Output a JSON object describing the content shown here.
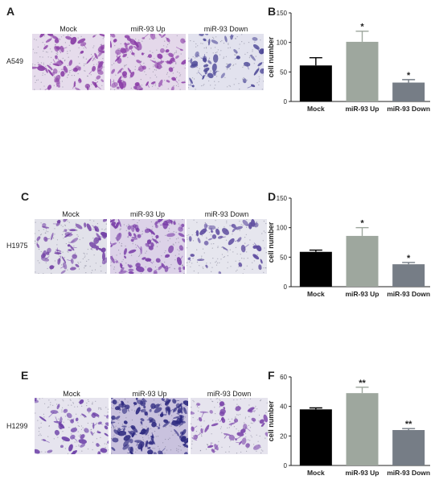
{
  "rows": [
    {
      "panel_image_letter": "A",
      "panel_chart_letter": "B",
      "cell_line": "A549",
      "image_labels": [
        "Mock",
        "miR-93 Up",
        "miR-93 Down"
      ],
      "image_styles": [
        {
          "bg": "#e6dcec",
          "stain": "#8a3fa6",
          "density": 60
        },
        {
          "bg": "#e4d8ea",
          "stain": "#8b3ea8",
          "density": 70
        },
        {
          "bg": "#e2e2ee",
          "stain": "#4f4a98",
          "density": 40
        }
      ]
    },
    {
      "panel_image_letter": "C",
      "panel_chart_letter": "D",
      "cell_line": "H1975",
      "image_labels": [
        "Mock",
        "miR-93 Up",
        "miR-93 Down"
      ],
      "image_styles": [
        {
          "bg": "#e2e2ea",
          "stain": "#7442a6",
          "density": 50
        },
        {
          "bg": "#dcd2e8",
          "stain": "#7a3ea8",
          "density": 70
        },
        {
          "bg": "#e6e6ee",
          "stain": "#5c4a9e",
          "density": 35
        }
      ]
    },
    {
      "panel_image_letter": "E",
      "panel_chart_letter": "F",
      "cell_line": "H1299",
      "image_labels": [
        "Mock",
        "miR-93 Up",
        "miR-93 Down"
      ],
      "image_styles": [
        {
          "bg": "#e6e4ee",
          "stain": "#6c40a8",
          "density": 45
        },
        {
          "bg": "#c9c2de",
          "stain": "#2e2a80",
          "density": 110
        },
        {
          "bg": "#e6e4ee",
          "stain": "#7a44aa",
          "density": 40
        }
      ]
    }
  ],
  "chart_data": [
    {
      "type": "bar",
      "categories": [
        "Mock",
        "miR-93 Up",
        "miR-93 Down"
      ],
      "values": [
        61,
        101,
        32
      ],
      "errors": [
        13,
        18,
        5
      ],
      "annotations": [
        "",
        "*",
        "*"
      ],
      "colors": [
        "#000000",
        "#9ea79e",
        "#767d86"
      ],
      "title": "",
      "xlabel": "",
      "ylabel": "cell number",
      "ylim": [
        0,
        150
      ],
      "yticks": [
        0,
        50,
        100,
        150
      ]
    },
    {
      "type": "bar",
      "categories": [
        "Mock",
        "miR-93 Up",
        "miR-93 Down"
      ],
      "values": [
        59,
        86,
        38
      ],
      "errors": [
        3,
        14,
        3
      ],
      "annotations": [
        "",
        "*",
        "*"
      ],
      "colors": [
        "#000000",
        "#9ea79e",
        "#767d86"
      ],
      "title": "",
      "xlabel": "",
      "ylabel": "cell number",
      "ylim": [
        0,
        150
      ],
      "yticks": [
        0,
        50,
        100,
        150
      ]
    },
    {
      "type": "bar",
      "categories": [
        "Mock",
        "miR-93 Up",
        "miR-93 Down"
      ],
      "values": [
        38,
        49,
        24
      ],
      "errors": [
        1,
        4,
        1
      ],
      "annotations": [
        "",
        "**",
        "**"
      ],
      "colors": [
        "#000000",
        "#9ea79e",
        "#767d86"
      ],
      "title": "",
      "xlabel": "",
      "ylabel": "cell number",
      "ylim": [
        0,
        60
      ],
      "yticks": [
        0,
        20,
        40,
        60
      ]
    }
  ]
}
